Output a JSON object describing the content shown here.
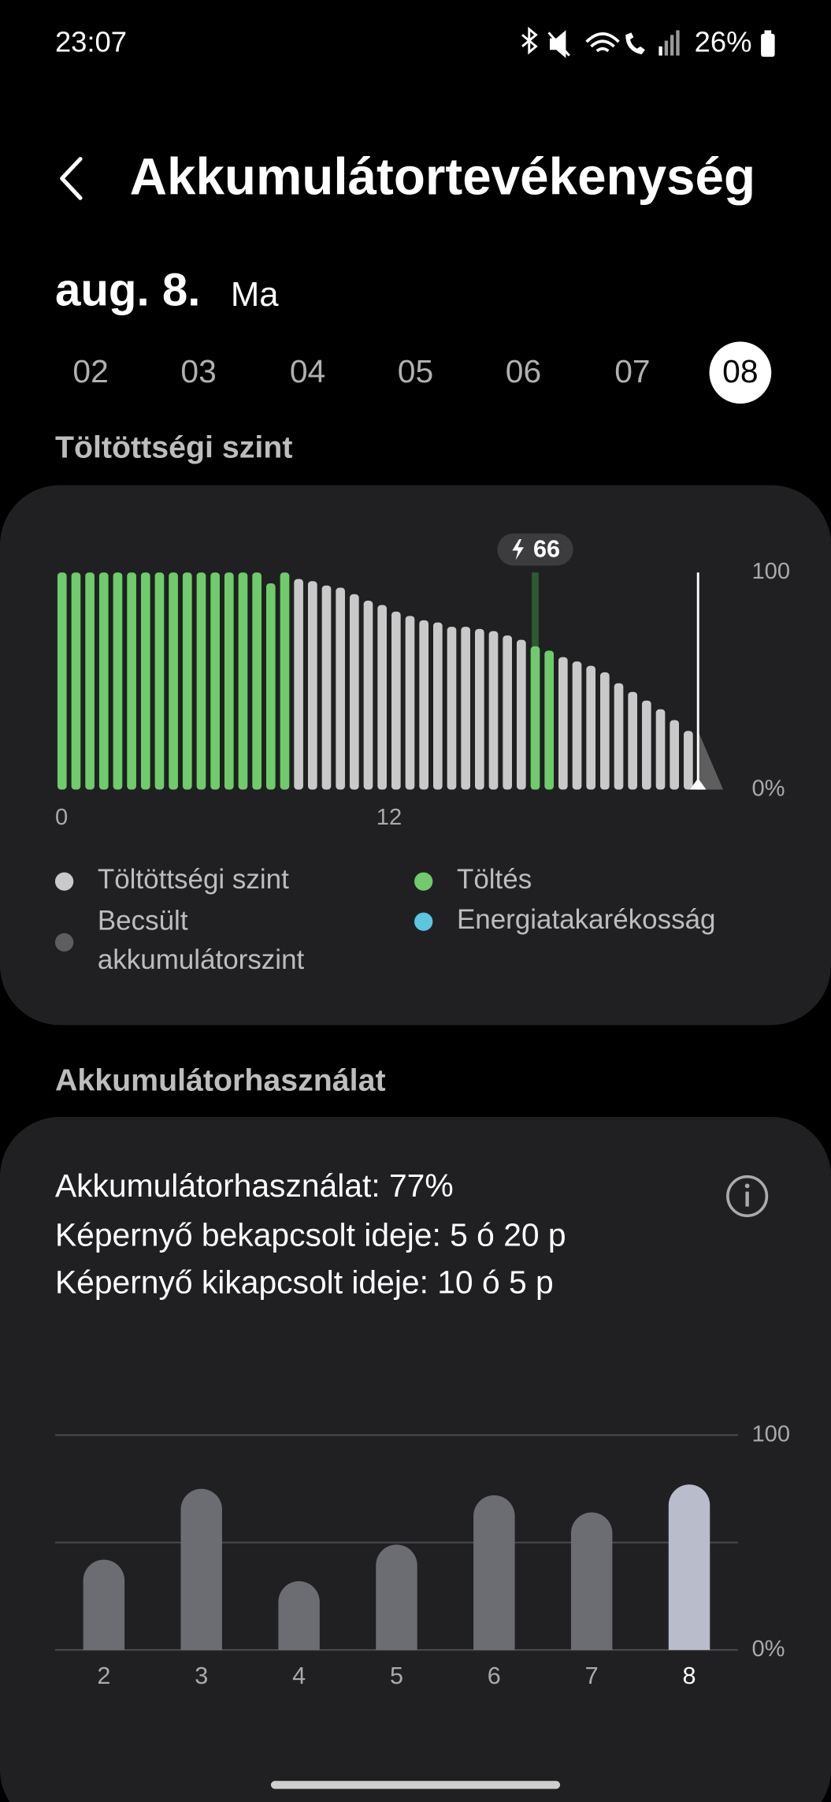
{
  "status_bar": {
    "time": "23:07",
    "battery": "26%"
  },
  "header": {
    "title": "Akkumulátortevékenység"
  },
  "date": {
    "day": "aug. 8.",
    "weekday": "Ma"
  },
  "days": {
    "items": [
      "02",
      "03",
      "04",
      "05",
      "06",
      "07",
      "08"
    ],
    "selected": 6
  },
  "sections": {
    "charge_title": "Töltöttségi szint",
    "usage_title": "Akkumulátorhasználat"
  },
  "usage_stats": [
    "Akkumulátorhasználat: 77%",
    "Képernyő bekapcsolt ideje: 5 ó 20 p",
    "Képernyő kikapcsolt ideje: 10 ó 5 p"
  ],
  "chart_data": [
    {
      "type": "bar",
      "x": [
        0,
        0.5,
        1,
        1.5,
        2,
        2.5,
        3,
        3.5,
        4,
        4.5,
        5,
        5.5,
        6,
        6.5,
        7,
        7.5,
        8,
        8.5,
        9,
        9.5,
        10,
        10.5,
        11,
        11.5,
        12,
        12.5,
        13,
        13.5,
        14,
        14.5,
        15,
        15.5,
        16,
        16.5,
        17,
        17.5,
        18,
        18.5,
        19,
        19.5,
        20,
        20.5,
        21,
        21.5,
        22,
        22.5
      ],
      "series": [
        {
          "name": "Töltöttségi szint",
          "color": "#c9c9c9",
          "values": [
            null,
            null,
            null,
            null,
            null,
            null,
            null,
            null,
            null,
            null,
            null,
            null,
            null,
            null,
            null,
            null,
            null,
            97,
            96,
            94,
            93,
            90,
            87,
            85,
            82,
            80,
            78,
            77,
            75,
            75,
            74,
            73,
            71,
            69,
            null,
            null,
            61,
            59,
            57,
            54,
            49,
            45,
            41,
            37,
            32,
            27
          ]
        },
        {
          "name": "Töltés",
          "color": "#6fcb6b",
          "values": [
            100,
            100,
            100,
            100,
            100,
            100,
            100,
            100,
            100,
            100,
            100,
            100,
            100,
            100,
            100,
            95,
            100,
            null,
            null,
            null,
            null,
            null,
            null,
            null,
            null,
            null,
            null,
            null,
            null,
            null,
            null,
            null,
            null,
            null,
            66,
            64,
            null,
            null,
            null,
            null,
            null,
            null,
            null,
            null,
            null,
            null
          ]
        },
        {
          "name": "Becsült akkumulátorszint",
          "color": "#5e5e5e",
          "values": [
            null,
            null,
            null,
            null,
            null,
            null,
            null,
            null,
            null,
            null,
            null,
            null,
            null,
            null,
            null,
            null,
            null,
            null,
            null,
            null,
            null,
            null,
            null,
            null,
            null,
            null,
            null,
            null,
            null,
            null,
            null,
            null,
            null,
            null,
            null,
            null,
            null,
            null,
            null,
            null,
            null,
            null,
            null,
            null,
            null,
            null
          ]
        },
        {
          "name": "Energiatakarékosság",
          "color": "#5cc6e0",
          "values": [
            null,
            null,
            null,
            null,
            null,
            null,
            null,
            null,
            null,
            null,
            null,
            null,
            null,
            null,
            null,
            null,
            null,
            null,
            null,
            null,
            null,
            null,
            null,
            null,
            null,
            null,
            null,
            null,
            null,
            null,
            null,
            null,
            null,
            null,
            null,
            null,
            null,
            null,
            null,
            null,
            null,
            null,
            null,
            null,
            null,
            null
          ]
        }
      ],
      "xlim": [
        0,
        24
      ],
      "xticks": [
        0,
        12
      ],
      "ylim": [
        0,
        100
      ],
      "yticks": [
        {
          "value": 0,
          "label": "0%"
        },
        100
      ],
      "current_time": 23.1
    },
    {
      "type": "bar",
      "categories": [
        "2",
        "3",
        "4",
        "5",
        "6",
        "7",
        "8"
      ],
      "values": [
        42,
        75,
        32,
        49,
        72,
        64,
        77
      ],
      "color": "#6c6d73",
      "highlight_color": "#b8bccb",
      "highlight_index": 6,
      "ylim": [
        0,
        100
      ],
      "yticks": [
        {
          "value": 0,
          "label": "0%"
        },
        100
      ],
      "minor_grid": [
        50
      ],
      "grid": true
    }
  ]
}
